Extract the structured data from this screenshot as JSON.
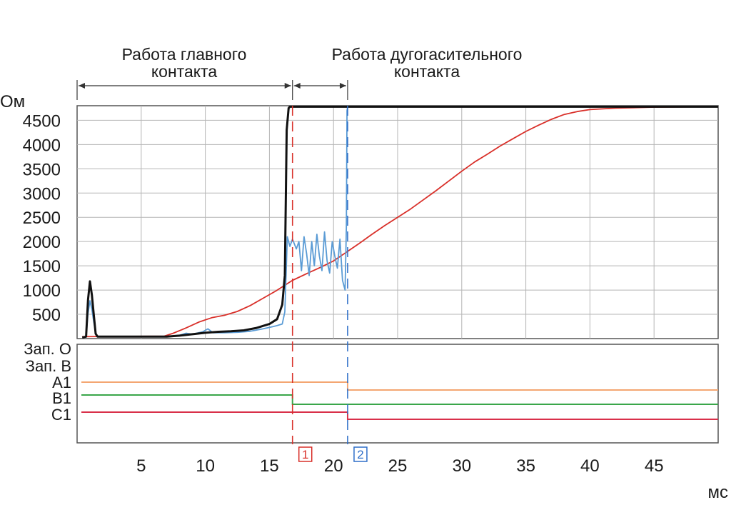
{
  "chart_data": {
    "type": "line",
    "phases": [
      {
        "label_line1": "Работа главного",
        "label_line2": "контакта",
        "x_range": [
          0,
          16.8
        ]
      },
      {
        "label_line1": "Работа дугогасительного",
        "label_line2": "контакта",
        "x_range": [
          16.8,
          21.1
        ]
      }
    ],
    "top_panel": {
      "ylabel": "Ом",
      "ylim": [
        0,
        4800
      ],
      "yticks": [
        500,
        1000,
        1500,
        2000,
        2500,
        3000,
        3500,
        4000,
        4500
      ],
      "series": [
        {
          "color": "#d9302a",
          "points": [
            [
              0.4,
              40
            ],
            [
              6.8,
              50
            ],
            [
              7.5,
              110
            ],
            [
              8.5,
              220
            ],
            [
              9.5,
              340
            ],
            [
              10.5,
              430
            ],
            [
              11.5,
              480
            ],
            [
              12.5,
              560
            ],
            [
              13.5,
              680
            ],
            [
              14.5,
              830
            ],
            [
              15.5,
              980
            ],
            [
              16.8,
              1200
            ],
            [
              18,
              1350
            ],
            [
              19,
              1470
            ],
            [
              20,
              1600
            ],
            [
              21,
              1780
            ],
            [
              22,
              1960
            ],
            [
              23,
              2150
            ],
            [
              24,
              2330
            ],
            [
              25,
              2500
            ],
            [
              26,
              2670
            ],
            [
              27,
              2860
            ],
            [
              28,
              3050
            ],
            [
              29,
              3250
            ],
            [
              30,
              3450
            ],
            [
              31,
              3640
            ],
            [
              32,
              3800
            ],
            [
              33,
              3970
            ],
            [
              34,
              4120
            ],
            [
              35,
              4270
            ],
            [
              36,
              4400
            ],
            [
              37,
              4520
            ],
            [
              38,
              4620
            ],
            [
              39,
              4680
            ],
            [
              40,
              4720
            ],
            [
              42,
              4750
            ],
            [
              45,
              4770
            ],
            [
              50,
              4780
            ]
          ]
        },
        {
          "color": "#5a9bd5",
          "points": [
            [
              0.4,
              30
            ],
            [
              0.7,
              40
            ],
            [
              0.85,
              520
            ],
            [
              1.0,
              780
            ],
            [
              1.15,
              600
            ],
            [
              1.3,
              350
            ],
            [
              1.45,
              120
            ],
            [
              1.6,
              40
            ],
            [
              7,
              40
            ],
            [
              8,
              70
            ],
            [
              8.5,
              110
            ],
            [
              9,
              90
            ],
            [
              9.8,
              140
            ],
            [
              10.2,
              200
            ],
            [
              10.6,
              120
            ],
            [
              11.5,
              120
            ],
            [
              12.5,
              130
            ],
            [
              13.5,
              150
            ],
            [
              14.5,
              200
            ],
            [
              15.5,
              260
            ],
            [
              16,
              300
            ],
            [
              16.2,
              550
            ],
            [
              16.4,
              2100
            ],
            [
              16.6,
              1900
            ],
            [
              16.8,
              2050
            ],
            [
              17.1,
              1850
            ],
            [
              17.3,
              2000
            ],
            [
              17.5,
              1400
            ],
            [
              17.7,
              2100
            ],
            [
              17.9,
              1750
            ],
            [
              18.1,
              1300
            ],
            [
              18.3,
              2000
            ],
            [
              18.5,
              1500
            ],
            [
              18.7,
              2150
            ],
            [
              18.9,
              1700
            ],
            [
              19.1,
              1400
            ],
            [
              19.3,
              2200
            ],
            [
              19.5,
              1600
            ],
            [
              19.7,
              1350
            ],
            [
              19.9,
              2000
            ],
            [
              20.1,
              1700
            ],
            [
              20.3,
              1450
            ],
            [
              20.5,
              2050
            ],
            [
              20.7,
              1200
            ],
            [
              20.9,
              1000
            ],
            [
              21.0,
              2300
            ],
            [
              21.05,
              4700
            ],
            [
              21.1,
              4780
            ],
            [
              50,
              4780
            ]
          ]
        },
        {
          "color": "#111111",
          "points": [
            [
              0.4,
              20
            ],
            [
              0.7,
              40
            ],
            [
              0.85,
              800
            ],
            [
              1.0,
              1180
            ],
            [
              1.15,
              900
            ],
            [
              1.3,
              500
            ],
            [
              1.45,
              100
            ],
            [
              1.6,
              40
            ],
            [
              7,
              40
            ],
            [
              8,
              60
            ],
            [
              9,
              90
            ],
            [
              10,
              120
            ],
            [
              11,
              140
            ],
            [
              12,
              150
            ],
            [
              13,
              170
            ],
            [
              14,
              220
            ],
            [
              15,
              300
            ],
            [
              15.6,
              400
            ],
            [
              16.0,
              700
            ],
            [
              16.2,
              1300
            ],
            [
              16.35,
              4300
            ],
            [
              16.5,
              4750
            ],
            [
              16.6,
              4780
            ],
            [
              50,
              4780
            ]
          ]
        }
      ]
    },
    "bottom_panel": {
      "labels": [
        "Зап. О",
        "Зап. В",
        "A1",
        "B1",
        "C1"
      ],
      "signals": [
        {
          "name": "A1",
          "color": "#f4a672",
          "high_until": 21.1
        },
        {
          "name": "B1",
          "color": "#3aa64a",
          "high_until": 16.8
        },
        {
          "name": "C1",
          "color": "#d9304a",
          "high_until": 21.1
        }
      ]
    },
    "xlim": [
      0,
      50
    ],
    "xticks": [
      5,
      10,
      15,
      20,
      25,
      30,
      35,
      40,
      45
    ],
    "xlabel": "мс",
    "markers": [
      {
        "label": "1",
        "x": 16.8,
        "color": "#d9302a"
      },
      {
        "label": "2",
        "x": 21.1,
        "color": "#2f6fc9"
      }
    ]
  }
}
